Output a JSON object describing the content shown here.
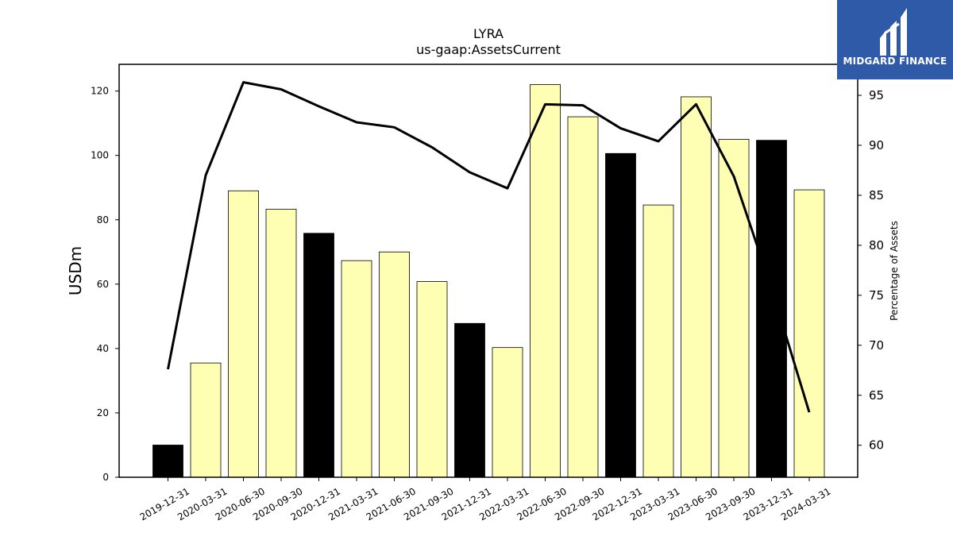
{
  "chart_data": {
    "type": "bar",
    "title": "LYRA",
    "subtitle": "us-gaap:AssetsCurrent",
    "ylabel": "USDm",
    "y2label": "Percentage of Assets",
    "categories": [
      "2019-12-31",
      "2020-03-31",
      "2020-06-30",
      "2020-09-30",
      "2020-12-31",
      "2021-03-31",
      "2021-06-30",
      "2021-09-30",
      "2021-12-31",
      "2022-03-31",
      "2022-06-30",
      "2022-09-30",
      "2022-12-31",
      "2023-03-31",
      "2023-06-30",
      "2023-09-30",
      "2023-12-31",
      "2024-03-31"
    ],
    "series": [
      {
        "type": "bar",
        "values": [
          10.0,
          35.5,
          89.0,
          83.3,
          75.8,
          67.3,
          70.0,
          60.8,
          47.8,
          40.3,
          122.0,
          112.0,
          100.6,
          84.6,
          118.2,
          105.0,
          104.7,
          89.3
        ]
      },
      {
        "type": "line",
        "axis": "right",
        "values": [
          67.6,
          87.0,
          96.3,
          95.6,
          93.9,
          92.3,
          91.8,
          89.8,
          87.3,
          85.7,
          94.1,
          94.0,
          91.7,
          90.4,
          94.1,
          86.9,
          75.7,
          63.3
        ]
      }
    ],
    "bar_colors": [
      "#000000",
      "#ffffb3",
      "#ffffb3",
      "#ffffb3",
      "#000000",
      "#ffffb3",
      "#ffffb3",
      "#ffffb3",
      "#000000",
      "#ffffb3",
      "#ffffb3",
      "#ffffb3",
      "#000000",
      "#ffffb3",
      "#ffffb3",
      "#ffffb3",
      "#000000",
      "#ffffb3"
    ],
    "line_color": "#000000",
    "ylim": [
      0,
      128.3
    ],
    "y2lim": [
      56.8,
      98.1
    ],
    "yticks": [
      0,
      20,
      40,
      60,
      80,
      100,
      120
    ],
    "y2ticks": [
      60,
      65,
      70,
      75,
      80,
      85,
      90,
      95
    ],
    "grid": false,
    "legend": "none"
  },
  "logo": {
    "text": "MIDGARD FINANCE",
    "background": "#2f5aa8"
  }
}
